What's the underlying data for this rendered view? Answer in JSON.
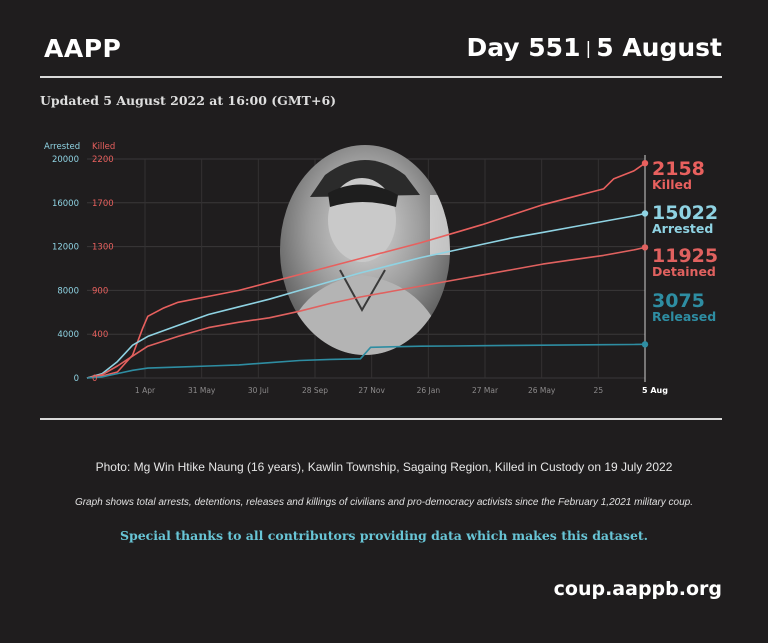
{
  "header": {
    "org": "AAPP",
    "day": "Day 551",
    "separator": "|",
    "date": "5 August"
  },
  "updated": "Updated 5 August 2022 at 16:00 (GMT+6)",
  "photo_caption": "Photo: Mg Win Htike Naung (16 years), Kawlin Township, Sagaing Region, Killed in Custody on 19 July 2022",
  "graph_caption": "Graph shows total arrests, detentions, releases and killings of civilians and pro-democracy activists since the February 1,2021 military coup.",
  "thanks": "Special thanks to all contributors providing data which makes this dataset.",
  "site": "coup.aappb.org",
  "colors": {
    "background": "#1f1d1e",
    "arrested": "#8fd3e3",
    "killed": "#e8605e",
    "detained": "#e0615f",
    "released": "#2e8da2"
  },
  "chart_data": {
    "type": "line",
    "x_tick_labels": [
      "1 Apr",
      "31 May",
      "30 Jul",
      "28 Sep",
      "27 Nov",
      "26 Jan",
      "27 Mar",
      "26 May",
      "25",
      "5 Aug"
    ],
    "left_axis": {
      "label": "Arrested",
      "ticks": [
        0,
        4000,
        8000,
        12000,
        16000,
        20000
      ],
      "ylim": [
        0,
        20000
      ]
    },
    "right_axis": {
      "label": "Killed",
      "ticks": [
        0,
        400,
        900,
        1300,
        1700,
        2200
      ],
      "ylim": [
        0,
        2200
      ]
    },
    "grid": true,
    "series": [
      {
        "name": "Killed",
        "axis": "killed",
        "final": 2158,
        "final_label": "2158",
        "x": [
          0,
          15,
          30,
          45,
          55,
          60,
          75,
          90,
          120,
          150,
          180,
          210,
          240,
          270,
          300,
          330,
          360,
          390,
          420,
          450,
          480,
          510,
          520,
          540,
          551
        ],
        "y": [
          0,
          20,
          60,
          230,
          500,
          620,
          700,
          760,
          820,
          880,
          960,
          1040,
          1120,
          1200,
          1280,
          1360,
          1450,
          1540,
          1640,
          1740,
          1820,
          1900,
          2000,
          2080,
          2158
        ]
      },
      {
        "name": "Arrested",
        "axis": "arrested",
        "final": 15022,
        "final_label": "15022",
        "x": [
          0,
          15,
          30,
          45,
          60,
          90,
          120,
          150,
          180,
          210,
          240,
          270,
          300,
          330,
          360,
          390,
          420,
          450,
          480,
          510,
          540,
          551
        ],
        "y": [
          0,
          400,
          1500,
          3000,
          3800,
          4800,
          5800,
          6500,
          7200,
          8000,
          8800,
          9600,
          10300,
          11000,
          11600,
          12200,
          12800,
          13300,
          13800,
          14300,
          14800,
          15022
        ]
      },
      {
        "name": "Detained",
        "axis": "arrested",
        "final": 11925,
        "final_label": "11925",
        "x": [
          0,
          15,
          30,
          45,
          60,
          90,
          120,
          150,
          180,
          210,
          240,
          270,
          300,
          330,
          360,
          390,
          420,
          450,
          480,
          510,
          540,
          551
        ],
        "y": [
          0,
          300,
          1100,
          2000,
          2900,
          3800,
          4600,
          5100,
          5500,
          6100,
          6800,
          7400,
          7900,
          8400,
          8900,
          9400,
          9900,
          10400,
          10800,
          11200,
          11700,
          11925
        ]
      },
      {
        "name": "Released",
        "axis": "arrested",
        "final": 3075,
        "final_label": "3075",
        "x": [
          0,
          15,
          30,
          45,
          60,
          90,
          120,
          150,
          180,
          210,
          240,
          270,
          280,
          300,
          330,
          360,
          390,
          420,
          450,
          480,
          510,
          540,
          551
        ],
        "y": [
          0,
          100,
          400,
          700,
          900,
          1000,
          1100,
          1200,
          1400,
          1600,
          1700,
          1750,
          2800,
          2850,
          2900,
          2920,
          2950,
          2980,
          3000,
          3020,
          3040,
          3060,
          3075
        ]
      }
    ],
    "annotations": [
      {
        "series": "Killed",
        "value": "2158",
        "label": "Killed"
      },
      {
        "series": "Arrested",
        "value": "15022",
        "label": "Arrested"
      },
      {
        "series": "Detained",
        "value": "11925",
        "label": "Detained"
      },
      {
        "series": "Released",
        "value": "3075",
        "label": "Released"
      }
    ]
  }
}
